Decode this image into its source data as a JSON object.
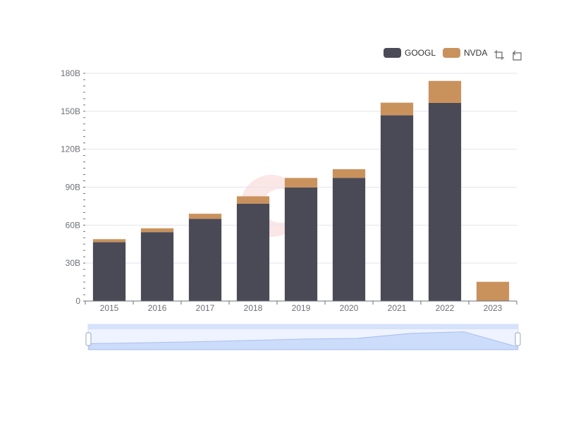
{
  "chart_data": {
    "type": "bar",
    "stacked": true,
    "categories": [
      "2015",
      "2016",
      "2017",
      "2018",
      "2019",
      "2020",
      "2021",
      "2022",
      "2023"
    ],
    "series": [
      {
        "name": "GOOGL",
        "color": "#4a4a57",
        "values": [
          46.5,
          54.5,
          65.0,
          77.0,
          89.8,
          97.4,
          146.8,
          156.6,
          0
        ]
      },
      {
        "name": "NVDA",
        "color": "#c9925d",
        "values": [
          2.4,
          3.0,
          4.0,
          5.8,
          7.5,
          6.8,
          10.0,
          17.4,
          15.2
        ]
      }
    ],
    "ylim": [
      0,
      180
    ],
    "yticks": [
      "0",
      "30B",
      "60B",
      "90B",
      "120B",
      "150B",
      "180B"
    ],
    "legend_position": "top-right",
    "grid": true,
    "title": "",
    "xlabel": "",
    "ylabel": ""
  },
  "toolbar": {
    "icons": [
      "zoom-icon",
      "zoom-reset-icon"
    ]
  }
}
